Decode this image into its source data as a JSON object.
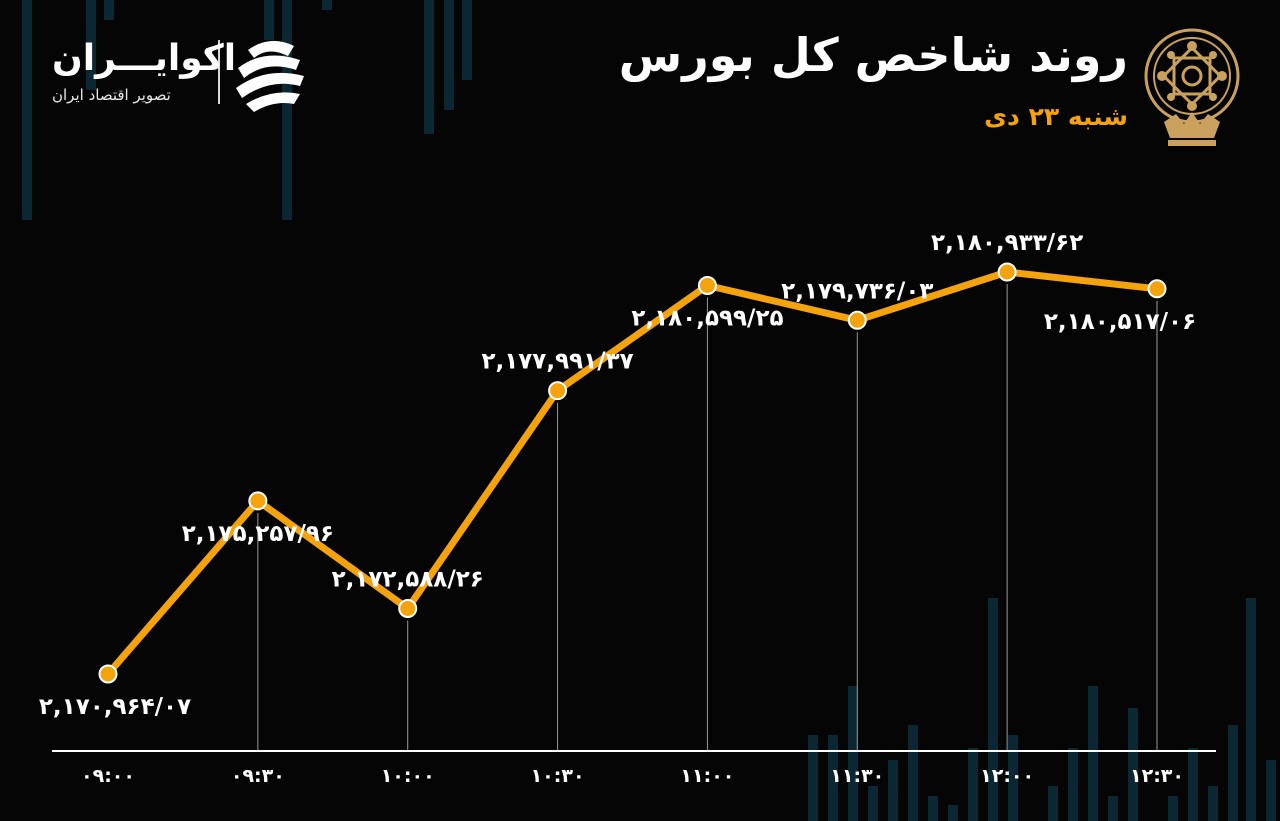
{
  "header": {
    "title": "روند شاخص کل بورس",
    "subtitle": "شنبه ۲۳ دی"
  },
  "brand": {
    "name": "اکوایـــران",
    "tagline": "تصویر اقتصاد ایران"
  },
  "colors": {
    "background": "#050505",
    "line": "#f5a30d",
    "point_fill": "#f5a30d",
    "point_stroke": "#ffffff",
    "subtitle": "#f5a30d",
    "bg_bars": "#0b2733",
    "seal": "#c9a15c"
  },
  "icons": {
    "brand_logo": "ecoiran-logo-icon",
    "seal": "tehran-stock-exchange-seal-icon"
  },
  "chart_data": {
    "type": "line",
    "title": "روند شاخص کل بورس",
    "subtitle": "شنبه ۲۳ دی",
    "xlabel": "",
    "ylabel": "",
    "categories": [
      "۰۹:۰۰",
      "۰۹:۳۰",
      "۱۰:۰۰",
      "۱۰:۳۰",
      "۱۱:۰۰",
      "۱۱:۳۰",
      "۱۲:۰۰",
      "۱۲:۳۰"
    ],
    "values": [
      2170964.07,
      2175257.96,
      2172588.26,
      2177991.37,
      2180599.25,
      2179736.03,
      2180933.62,
      2180517.06
    ],
    "labels": [
      "۲,۱۷۰,۹۶۴/۰۷",
      "۲,۱۷۵,۲۵۷/۹۶",
      "۲,۱۷۲,۵۸۸/۲۶",
      "۲,۱۷۷,۹۹۱/۳۷",
      "۲,۱۸۰,۵۹۹/۲۵",
      "۲,۱۷۹,۷۳۶/۰۳",
      "۲,۱۸۰,۹۳۳/۶۲",
      "۲,۱۸۰,۵۱۷/۰۶"
    ],
    "grid": false,
    "legend": "none"
  }
}
